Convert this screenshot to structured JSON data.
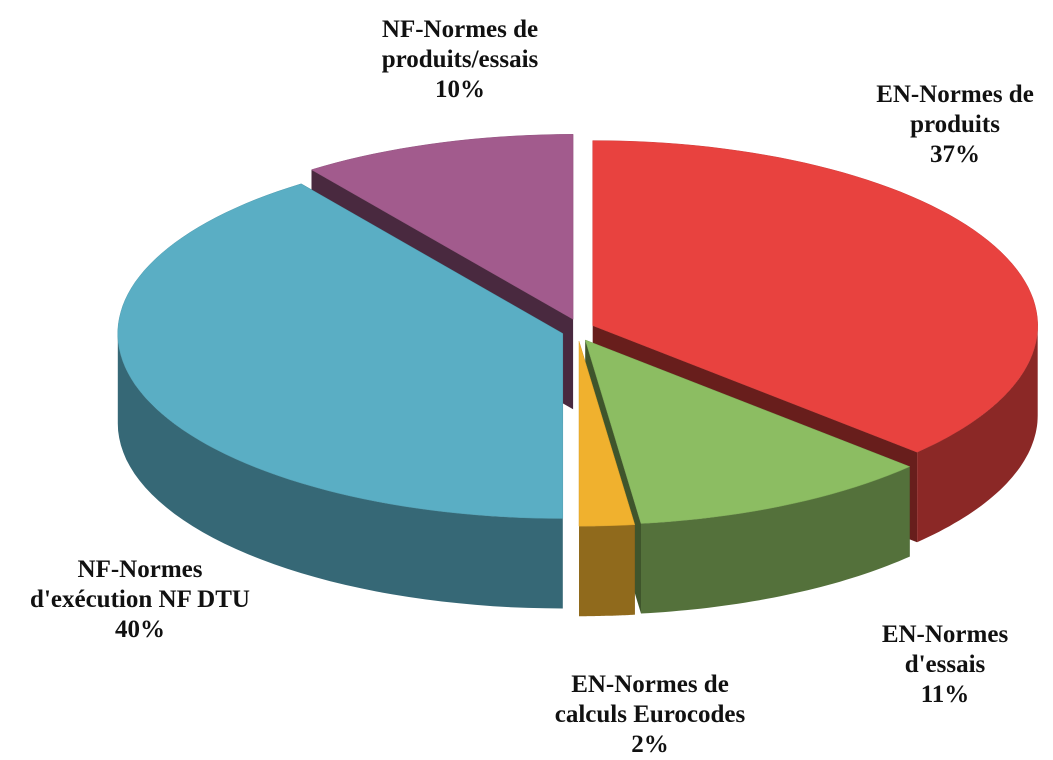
{
  "chart_data": {
    "type": "pie",
    "categories": [
      "EN-Normes de produits",
      "EN-Normes d'essais",
      "EN-Normes de calculs Eurocodes",
      "NF-Normes d'exécution NF DTU",
      "NF-Normes de produits/essais"
    ],
    "values": [
      37,
      11,
      2,
      40,
      10
    ],
    "value_labels": [
      "37%",
      "11%",
      "2%",
      "40%",
      "10%"
    ],
    "colors": [
      "#e8423f",
      "#8cbd62",
      "#f0b12e",
      "#5aaec4",
      "#a25b8d"
    ]
  }
}
